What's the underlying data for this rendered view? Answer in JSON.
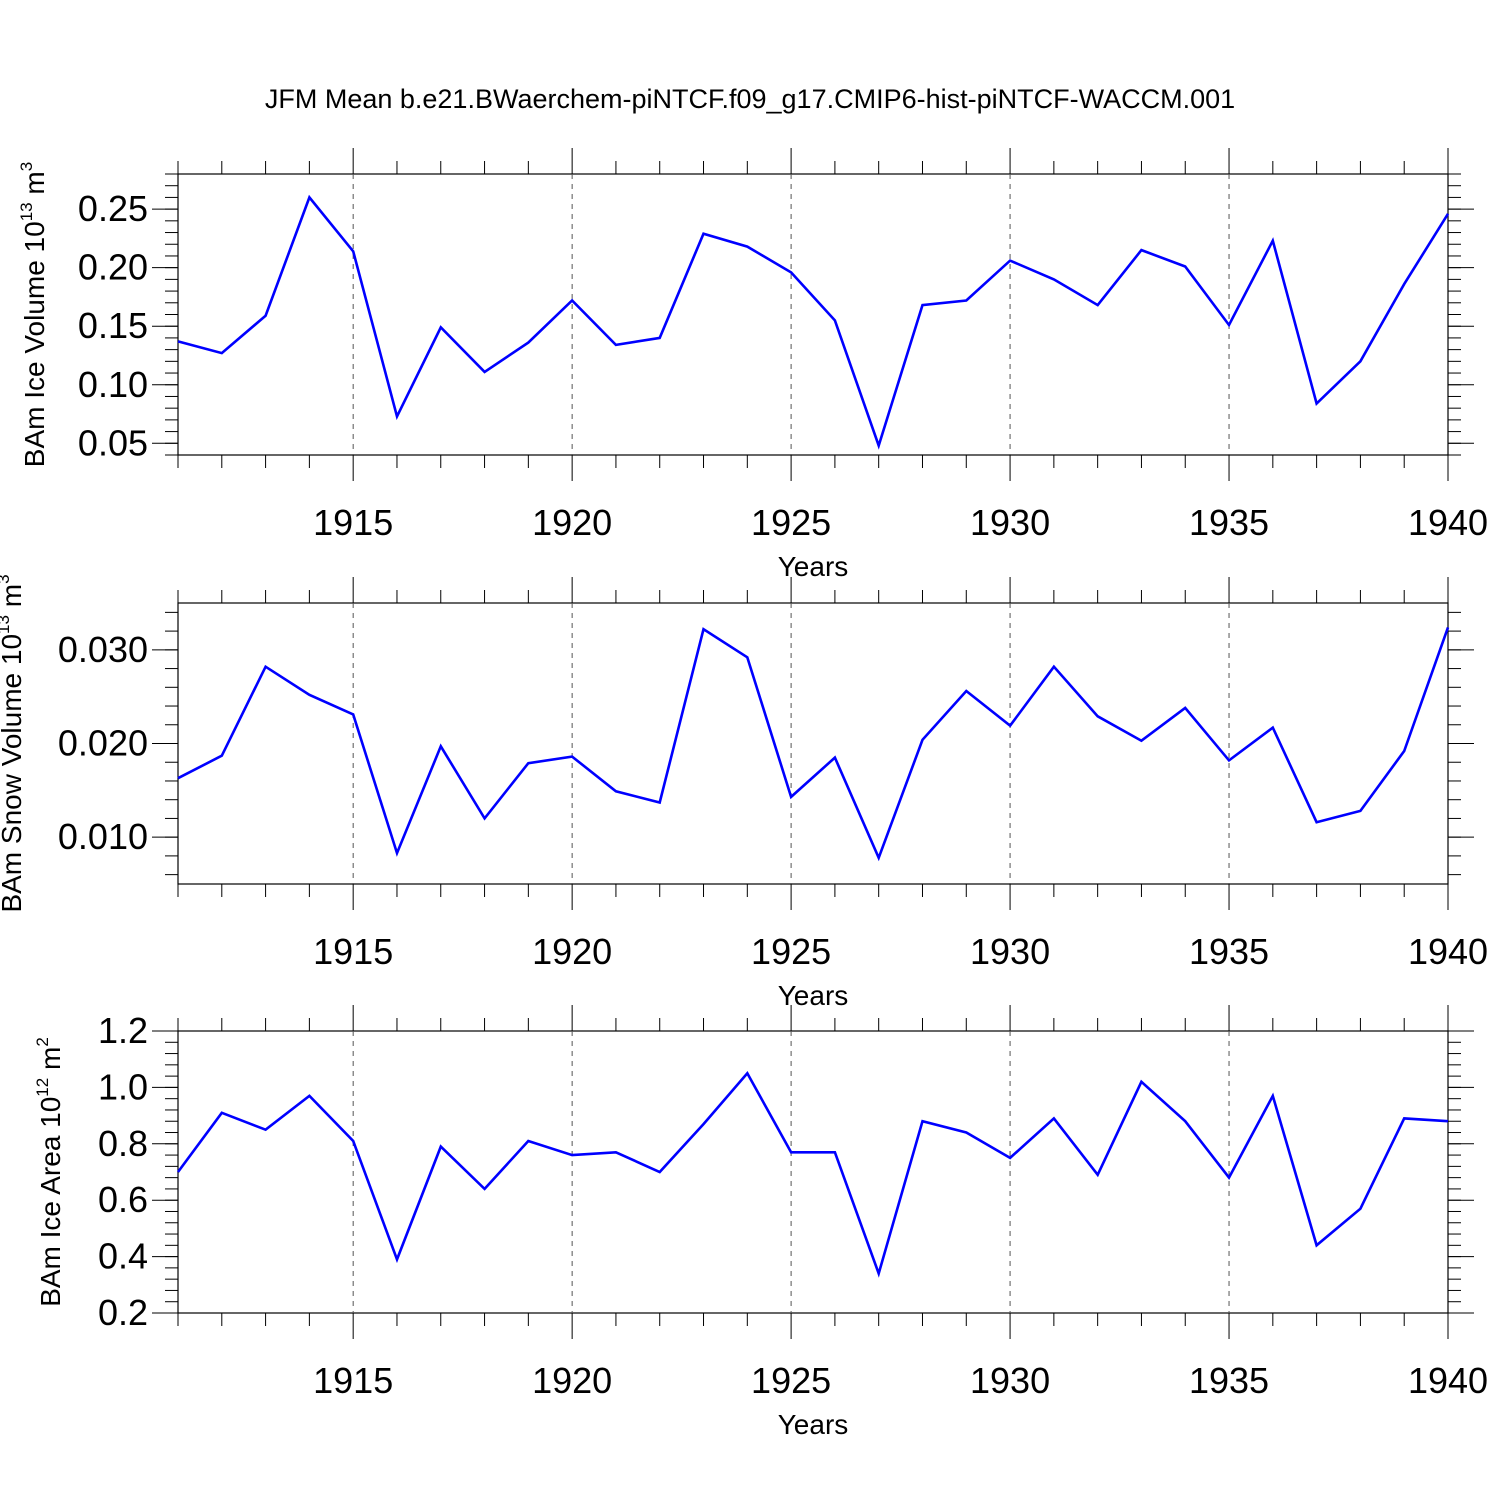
{
  "title": "JFM Mean b.e21.BWaerchem-piNTCF.f09_g17.CMIP6-hist-piNTCF-WACCM.001",
  "line_color": "#0000ff",
  "chart_data": [
    {
      "type": "line",
      "xlabel": "Years",
      "ylabel_text": "BAm Ice Volume 10",
      "ylabel_exp": "13",
      "ylabel_unit": "m",
      "ylabel_unit_exp": "3",
      "xlim": [
        1911,
        1940
      ],
      "ylim": [
        0.04,
        0.28
      ],
      "yticks": [
        0.05,
        0.1,
        0.15,
        0.2,
        0.25
      ],
      "ytick_labels": [
        "0.05",
        "0.10",
        "0.15",
        "0.20",
        "0.25"
      ],
      "xticks": [
        1915,
        1920,
        1925,
        1930,
        1935,
        1940
      ],
      "xtick_labels": [
        "1915",
        "1920",
        "1925",
        "1930",
        "1935",
        "1940"
      ],
      "x": [
        1911,
        1912,
        1913,
        1914,
        1915,
        1916,
        1917,
        1918,
        1919,
        1920,
        1921,
        1922,
        1923,
        1924,
        1925,
        1926,
        1927,
        1928,
        1929,
        1930,
        1931,
        1932,
        1933,
        1934,
        1935,
        1936,
        1937,
        1938,
        1939,
        1940
      ],
      "values": [
        0.137,
        0.127,
        0.159,
        0.26,
        0.214,
        0.073,
        0.149,
        0.111,
        0.136,
        0.172,
        0.134,
        0.14,
        0.229,
        0.218,
        0.196,
        0.155,
        0.048,
        0.168,
        0.172,
        0.206,
        0.19,
        0.168,
        0.215,
        0.201,
        0.151,
        0.223,
        0.084,
        0.12,
        0.186,
        0.246
      ]
    },
    {
      "type": "line",
      "xlabel": "Years",
      "ylabel_text": "BAm Snow Volume 10",
      "ylabel_exp": "13",
      "ylabel_unit": "m",
      "ylabel_unit_exp": "3",
      "xlim": [
        1911,
        1940
      ],
      "ylim": [
        0.005,
        0.035
      ],
      "yticks": [
        0.01,
        0.02,
        0.03
      ],
      "ytick_labels": [
        "0.010",
        "0.020",
        "0.030"
      ],
      "xticks": [
        1915,
        1920,
        1925,
        1930,
        1935,
        1940
      ],
      "xtick_labels": [
        "1915",
        "1920",
        "1925",
        "1930",
        "1935",
        "1940"
      ],
      "x": [
        1911,
        1912,
        1913,
        1914,
        1915,
        1916,
        1917,
        1918,
        1919,
        1920,
        1921,
        1922,
        1923,
        1924,
        1925,
        1926,
        1927,
        1928,
        1929,
        1930,
        1931,
        1932,
        1933,
        1934,
        1935,
        1936,
        1937,
        1938,
        1939,
        1940
      ],
      "values": [
        0.0163,
        0.0187,
        0.0282,
        0.0252,
        0.0231,
        0.0083,
        0.0197,
        0.012,
        0.0179,
        0.0186,
        0.0149,
        0.0137,
        0.0322,
        0.0292,
        0.0143,
        0.0185,
        0.0078,
        0.0204,
        0.0256,
        0.0219,
        0.0282,
        0.0229,
        0.0203,
        0.0238,
        0.0182,
        0.0217,
        0.0116,
        0.0128,
        0.0192,
        0.0324
      ]
    },
    {
      "type": "line",
      "xlabel": "Years",
      "ylabel_text": "BAm Ice Area 10",
      "ylabel_exp": "12",
      "ylabel_unit": "m",
      "ylabel_unit_exp": "2",
      "xlim": [
        1911,
        1940
      ],
      "ylim": [
        0.2,
        1.2
      ],
      "yticks": [
        0.2,
        0.4,
        0.6,
        0.8,
        1.0,
        1.2
      ],
      "ytick_labels": [
        "0.2",
        "0.4",
        "0.6",
        "0.8",
        "1.0",
        "1.2"
      ],
      "xticks": [
        1915,
        1920,
        1925,
        1930,
        1935,
        1940
      ],
      "xtick_labels": [
        "1915",
        "1920",
        "1925",
        "1930",
        "1935",
        "1940"
      ],
      "x": [
        1911,
        1912,
        1913,
        1914,
        1915,
        1916,
        1917,
        1918,
        1919,
        1920,
        1921,
        1922,
        1923,
        1924,
        1925,
        1926,
        1927,
        1928,
        1929,
        1930,
        1931,
        1932,
        1933,
        1934,
        1935,
        1936,
        1937,
        1938,
        1939,
        1940
      ],
      "values": [
        0.7,
        0.91,
        0.85,
        0.97,
        0.81,
        0.39,
        0.79,
        0.64,
        0.81,
        0.76,
        0.77,
        0.7,
        0.87,
        1.05,
        0.77,
        0.77,
        0.34,
        0.88,
        0.84,
        0.75,
        0.89,
        0.69,
        1.02,
        0.88,
        0.68,
        0.97,
        0.44,
        0.57,
        0.89,
        0.88
      ]
    }
  ]
}
